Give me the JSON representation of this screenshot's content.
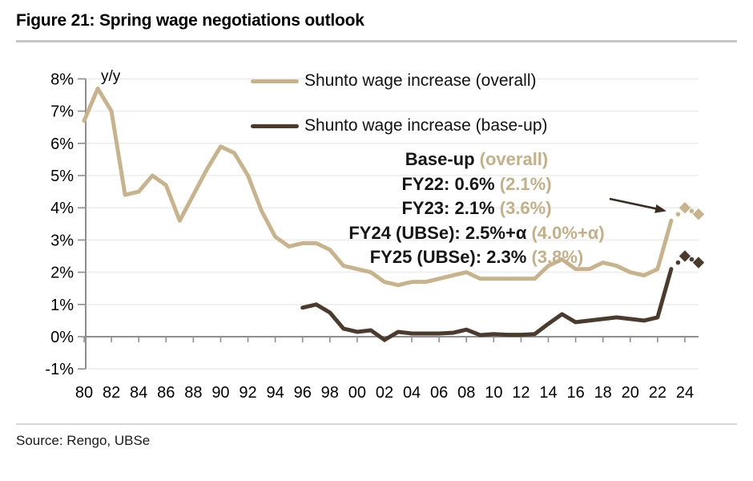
{
  "title": "Figure 21: Spring wage negotiations outlook",
  "source": "Source: Rengo, UBSe",
  "legend": [
    {
      "label": "Shunto wage increase (overall)",
      "color": "#c7b48d"
    },
    {
      "label": "Shunto wage increase (base-up)",
      "color": "#4a3b2d"
    }
  ],
  "annotation": {
    "lines": [
      {
        "dark": "Base-up",
        "tan": " (overall)"
      },
      {
        "dark": "FY22: 0.6%",
        "tan": " (2.1%)"
      },
      {
        "dark": "FY23: 2.1%",
        "tan": " (3.6%)"
      },
      {
        "dark": "FY24 (UBSe): 2.5%+α",
        "tan": " (4.0%+α)"
      },
      {
        "dark": "FY25 (UBSe): 2.3%",
        "tan": " (3.8%)"
      }
    ]
  },
  "chart_data": {
    "type": "line",
    "title": "Figure 21: Spring wage negotiations outlook",
    "ylabel": "y/y",
    "ylim": [
      -1,
      8
    ],
    "grid": true,
    "legend_position": "top",
    "y_ticks": [
      "8%",
      "7%",
      "6%",
      "5%",
      "4%",
      "3%",
      "2%",
      "1%",
      "0%",
      "-1%"
    ],
    "x_ticks": [
      "80",
      "82",
      "84",
      "86",
      "88",
      "90",
      "92",
      "94",
      "96",
      "98",
      "00",
      "02",
      "04",
      "06",
      "08",
      "10",
      "12",
      "14",
      "16",
      "18",
      "20",
      "22",
      "24"
    ],
    "series": [
      {
        "name": "Shunto wage increase (overall)",
        "color": "#c7b48d",
        "start_year": 1980,
        "values": [
          6.7,
          7.7,
          7.0,
          4.4,
          4.5,
          5.0,
          4.7,
          3.6,
          4.4,
          5.2,
          5.9,
          5.7,
          5.0,
          3.9,
          3.1,
          2.8,
          2.9,
          2.9,
          2.7,
          2.2,
          2.1,
          2.0,
          1.7,
          1.6,
          1.7,
          1.7,
          1.8,
          1.9,
          2.0,
          1.8,
          1.8,
          1.8,
          1.8,
          1.8,
          2.2,
          2.4,
          2.1,
          2.1,
          2.3,
          2.2,
          2.0,
          1.9,
          2.1,
          3.6
        ],
        "estimates": {
          "years": [
            2024,
            2025
          ],
          "values": [
            4.0,
            3.8
          ]
        }
      },
      {
        "name": "Shunto wage increase (base-up)",
        "color": "#4a3b2d",
        "start_year": 1996,
        "values": [
          0.9,
          1.0,
          0.75,
          0.25,
          0.15,
          0.2,
          -0.1,
          0.15,
          0.1,
          0.1,
          0.1,
          0.12,
          0.22,
          0.05,
          0.08,
          0.06,
          0.06,
          0.08,
          0.4,
          0.7,
          0.45,
          0.5,
          0.55,
          0.6,
          0.55,
          0.5,
          0.6,
          2.1
        ],
        "estimates": {
          "years": [
            2024,
            2025
          ],
          "values": [
            2.5,
            2.3
          ]
        }
      }
    ]
  }
}
